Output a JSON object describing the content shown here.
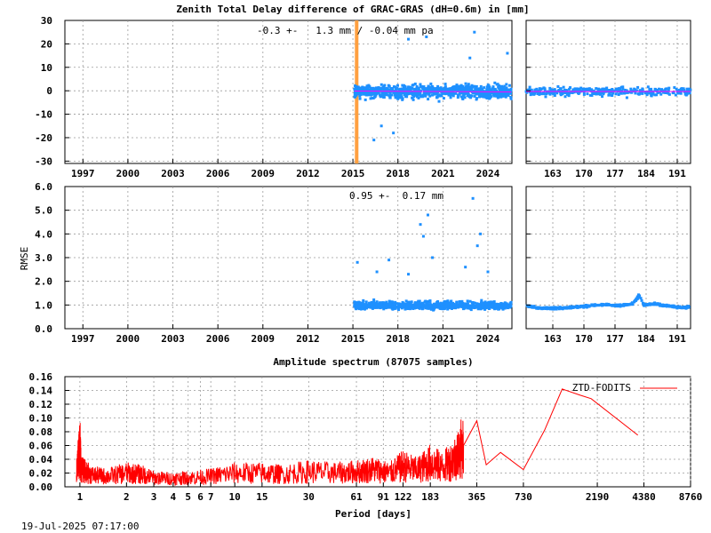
{
  "figure": {
    "title": "Zenith Total Delay difference of GRAC-GRAS (dH=0.6m) in [mm]",
    "timestamp": "19-Jul-2025 07:17:00"
  },
  "colors": {
    "points": "#1e90ff",
    "trend": "#ff00ff",
    "spectrum": "#ff0000",
    "event_marker": "#ffa040",
    "grid": "#9a9a9a",
    "axes": "#000000"
  },
  "chart_data": [
    {
      "id": "ztd-long",
      "type": "scatter",
      "annotation": "-0.3 +-   1.3 mm / -0.04 mm pa",
      "ylim": [
        -31,
        30
      ],
      "yticks": [
        -30,
        -20,
        -10,
        0,
        10,
        20,
        30
      ],
      "xlim": [
        1995.8,
        2025.6
      ],
      "xtick_labels": [
        "1997",
        "2000",
        "2003",
        "2006",
        "2009",
        "2012",
        "2015",
        "2018",
        "2021",
        "2024"
      ],
      "xtick_values": [
        1997,
        2000,
        2003,
        2006,
        2009,
        2012,
        2015,
        2018,
        2021,
        2024
      ],
      "data_start": 2015.1,
      "data_end": 2025.55,
      "event_marker": 2015.25,
      "mean": -0.3,
      "std": 1.3,
      "trend_per_year": -0.04,
      "outliers": [
        [
          2016.4,
          -21
        ],
        [
          2016.9,
          -15
        ],
        [
          2017.7,
          -18
        ],
        [
          2018.7,
          22
        ],
        [
          2019.9,
          23
        ],
        [
          2022.8,
          14
        ],
        [
          2023.1,
          25
        ],
        [
          2025.3,
          16
        ]
      ]
    },
    {
      "id": "ztd-recent",
      "type": "scatter",
      "ylim": [
        -31,
        30
      ],
      "yticks": [
        -30,
        -20,
        -10,
        0,
        10,
        20,
        30
      ],
      "xlim": [
        157,
        194
      ],
      "xtick_labels": [
        "163",
        "170",
        "177",
        "184",
        "191"
      ],
      "xtick_values": [
        163,
        170,
        177,
        184,
        191
      ],
      "mean": -0.3,
      "std": 1.3
    },
    {
      "id": "rmse-long",
      "type": "scatter",
      "annotation": "0.95 +-  0.17 mm",
      "ylabel": "RMSE",
      "ylim": [
        0,
        6
      ],
      "ytick_labels": [
        "0.0",
        "1.0",
        "2.0",
        "3.0",
        "4.0",
        "5.0",
        "6.0"
      ],
      "ytick_values": [
        0,
        1,
        2,
        3,
        4,
        5,
        6
      ],
      "xlim": [
        1995.8,
        2025.6
      ],
      "xtick_labels": [
        "1997",
        "2000",
        "2003",
        "2006",
        "2009",
        "2012",
        "2015",
        "2018",
        "2021",
        "2024"
      ],
      "xtick_values": [
        1997,
        2000,
        2003,
        2006,
        2009,
        2012,
        2015,
        2018,
        2021,
        2024
      ],
      "data_start": 2015.1,
      "data_end": 2025.55,
      "mean": 0.95,
      "std": 0.17,
      "outliers": [
        [
          2015.3,
          2.8
        ],
        [
          2016.6,
          2.4
        ],
        [
          2017.4,
          2.9
        ],
        [
          2018.7,
          2.3
        ],
        [
          2019.5,
          4.4
        ],
        [
          2019.7,
          3.9
        ],
        [
          2020.0,
          4.8
        ],
        [
          2020.3,
          3.0
        ],
        [
          2022.5,
          2.6
        ],
        [
          2023.0,
          5.5
        ],
        [
          2023.3,
          3.5
        ],
        [
          2023.5,
          4.0
        ],
        [
          2024.0,
          2.4
        ]
      ]
    },
    {
      "id": "rmse-recent",
      "type": "scatter",
      "ylim": [
        0,
        6
      ],
      "ytick_values": [
        0,
        1,
        2,
        3,
        4,
        5,
        6
      ],
      "xlim": [
        157,
        194
      ],
      "xtick_labels": [
        "163",
        "170",
        "177",
        "184",
        "191"
      ],
      "xtick_values": [
        163,
        170,
        177,
        184,
        191
      ],
      "profile": [
        [
          157,
          0.95
        ],
        [
          160,
          0.88
        ],
        [
          163,
          0.86
        ],
        [
          166,
          0.88
        ],
        [
          169,
          0.92
        ],
        [
          172,
          0.98
        ],
        [
          175,
          1.02
        ],
        [
          178,
          0.98
        ],
        [
          181,
          1.05
        ],
        [
          182.5,
          1.42
        ],
        [
          183.5,
          1.0
        ],
        [
          186,
          1.05
        ],
        [
          189,
          0.95
        ],
        [
          192,
          0.9
        ],
        [
          194,
          0.92
        ]
      ]
    },
    {
      "id": "spectrum",
      "type": "line",
      "title": "Amplitude spectrum (87075 samples)",
      "xlabel": "Period [days]",
      "xscale": "log",
      "xlim": [
        0.8,
        8760
      ],
      "ylim": [
        0,
        0.16
      ],
      "ytick_labels": [
        "0.00",
        "0.02",
        "0.04",
        "0.06",
        "0.08",
        "0.10",
        "0.12",
        "0.14",
        "0.16"
      ],
      "ytick_values": [
        0,
        0.02,
        0.04,
        0.06,
        0.08,
        0.1,
        0.12,
        0.14,
        0.16
      ],
      "xtick_labels": [
        "1",
        "2",
        "3",
        "4",
        "5",
        "6",
        "7",
        "10",
        "15",
        "30",
        "61",
        "91",
        "122",
        "183",
        "365",
        "730",
        "2190",
        "4380",
        "8760"
      ],
      "xtick_values": [
        1,
        2,
        3,
        4,
        5,
        6,
        7,
        10,
        15,
        30,
        61,
        91,
        122,
        183,
        365,
        730,
        2190,
        4380,
        8760
      ],
      "series": [
        {
          "name": "ZTD-FODITS",
          "points": [
            [
              0.95,
              0.02
            ],
            [
              1.0,
              0.06
            ],
            [
              1.02,
              0.025
            ],
            [
              1.2,
              0.017
            ],
            [
              1.5,
              0.015
            ],
            [
              2.0,
              0.02
            ],
            [
              2.5,
              0.018
            ],
            [
              3.0,
              0.013
            ],
            [
              4.0,
              0.012
            ],
            [
              5.0,
              0.013
            ],
            [
              7.0,
              0.015
            ],
            [
              10.0,
              0.02
            ],
            [
              15.0,
              0.02
            ],
            [
              20.0,
              0.018
            ],
            [
              30.0,
              0.022
            ],
            [
              45.0,
              0.02
            ],
            [
              61.0,
              0.022
            ],
            [
              80.0,
              0.025
            ],
            [
              100.0,
              0.02
            ],
            [
              122.0,
              0.03
            ],
            [
              150.0,
              0.024
            ],
            [
              183.0,
              0.035
            ],
            [
              220.0,
              0.028
            ],
            [
              260.0,
              0.04
            ],
            [
              300.0,
              0.06
            ],
            [
              365.0,
              0.096
            ],
            [
              420.0,
              0.032
            ],
            [
              520.0,
              0.05
            ],
            [
              730.0,
              0.025
            ],
            [
              1000.0,
              0.082
            ],
            [
              1300.0,
              0.142
            ],
            [
              1700.0,
              0.133
            ],
            [
              2000.0,
              0.128
            ],
            [
              4000.0,
              0.075
            ]
          ]
        }
      ]
    }
  ]
}
